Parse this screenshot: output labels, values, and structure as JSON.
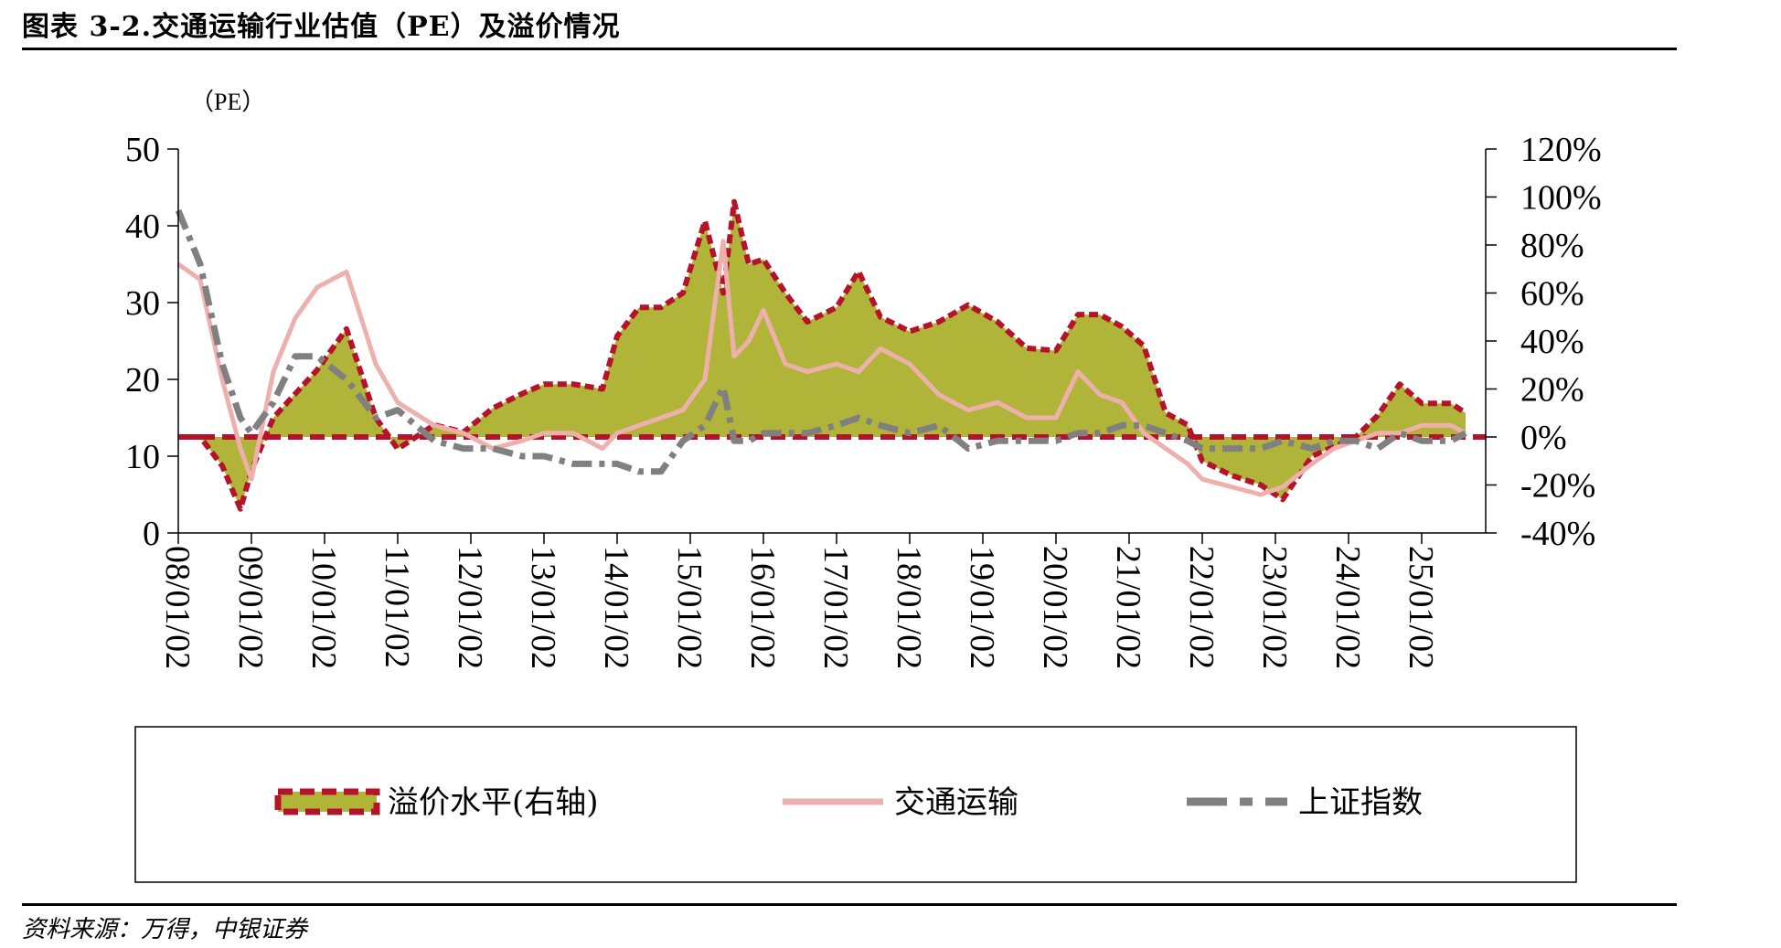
{
  "header": {
    "title": "图表 3-2.交通运输行业估值（PE）及溢价情况"
  },
  "footer": {
    "source": "资料来源：万得，中银证券"
  },
  "chart_data": {
    "type": "line",
    "title": "图表 3-2.交通运输行业估值（PE）及溢价情况",
    "y_unit_label": "（PE）",
    "y_left": {
      "range": [
        0,
        50
      ],
      "ticks": [
        "0",
        "10",
        "20",
        "30",
        "40",
        "50"
      ]
    },
    "y_right": {
      "range": [
        -0.4,
        1.2
      ],
      "ticks": [
        "-40%",
        "-20%",
        "0%",
        "20%",
        "40%",
        "60%",
        "80%",
        "100%",
        "120%"
      ]
    },
    "x_tick_labels": [
      "08/01/02",
      "09/01/02",
      "10/01/02",
      "11/01/02",
      "12/01/02",
      "13/01/02",
      "14/01/02",
      "15/01/02",
      "16/01/02",
      "17/01/02",
      "18/01/02",
      "19/01/02",
      "20/01/02",
      "21/01/02",
      "22/01/02",
      "23/01/02",
      "24/01/02",
      "25/01/02"
    ],
    "x_years": [
      2008.0,
      2008.3,
      2008.6,
      2008.85,
      2009.0,
      2009.3,
      2009.6,
      2009.9,
      2010.3,
      2010.7,
      2011.0,
      2011.5,
      2011.9,
      2012.3,
      2012.7,
      2013.0,
      2013.4,
      2013.8,
      2014.0,
      2014.3,
      2014.6,
      2014.9,
      2015.2,
      2015.45,
      2015.6,
      2015.8,
      2016.0,
      2016.3,
      2016.6,
      2017.0,
      2017.3,
      2017.6,
      2018.0,
      2018.4,
      2018.8,
      2019.2,
      2019.6,
      2020.0,
      2020.3,
      2020.6,
      2020.9,
      2021.2,
      2021.5,
      2021.8,
      2022.0,
      2022.4,
      2022.8,
      2023.1,
      2023.5,
      2023.8,
      2024.1,
      2024.4,
      2024.7,
      2025.0,
      2025.4,
      2025.6
    ],
    "series": [
      {
        "name": "溢价水平(右轴)",
        "axis": "right",
        "style": "dashed-filled",
        "values": [
          0.0,
          0.0,
          -0.12,
          -0.3,
          -0.14,
          0.08,
          0.18,
          0.28,
          0.45,
          0.08,
          -0.05,
          0.05,
          0.02,
          0.12,
          0.18,
          0.22,
          0.22,
          0.2,
          0.42,
          0.54,
          0.54,
          0.6,
          0.9,
          0.6,
          0.98,
          0.72,
          0.74,
          0.6,
          0.48,
          0.54,
          0.69,
          0.5,
          0.44,
          0.48,
          0.55,
          0.48,
          0.37,
          0.36,
          0.51,
          0.51,
          0.46,
          0.38,
          0.1,
          0.05,
          -0.1,
          -0.16,
          -0.2,
          -0.26,
          -0.08,
          -0.04,
          0.0,
          0.09,
          0.22,
          0.14,
          0.14,
          0.1
        ]
      },
      {
        "name": "交通运输",
        "axis": "left",
        "style": "solid",
        "values": [
          35,
          33,
          20,
          11,
          7,
          21,
          28,
          32,
          34,
          22,
          17,
          14,
          13,
          11,
          12,
          13,
          13,
          11,
          13,
          14,
          15,
          16,
          20,
          38,
          23,
          25,
          29,
          22,
          21,
          22,
          21,
          24,
          22,
          18,
          16,
          17,
          15,
          15,
          21,
          18,
          17,
          13,
          11,
          9,
          7,
          6,
          5,
          6,
          9,
          11,
          12,
          13,
          13,
          14,
          14,
          13
        ]
      },
      {
        "name": "上证指数",
        "axis": "left",
        "style": "dashed",
        "values": [
          42,
          35,
          22,
          15,
          13,
          17,
          23,
          23,
          20,
          15,
          16,
          12,
          11,
          11,
          10,
          10,
          9,
          9,
          9,
          8,
          8,
          12,
          14,
          19,
          12,
          12,
          13,
          13,
          13,
          14,
          15,
          14,
          13,
          14,
          11,
          12,
          12,
          12,
          13,
          13,
          14,
          14,
          13,
          12,
          11,
          11,
          11,
          12,
          11,
          12,
          12,
          11,
          13,
          12,
          12,
          13
        ]
      }
    ],
    "legend": {
      "placement": "bottom",
      "entries": [
        "溢价水平(右轴)",
        "交通运输",
        "上证指数"
      ]
    },
    "colors": {
      "premium_fill": "#b0b53a",
      "premium_border": "#b5122b",
      "transport": "#eeb0ad",
      "index": "#808080",
      "zero_line": "#b5122b"
    },
    "grid": false
  }
}
